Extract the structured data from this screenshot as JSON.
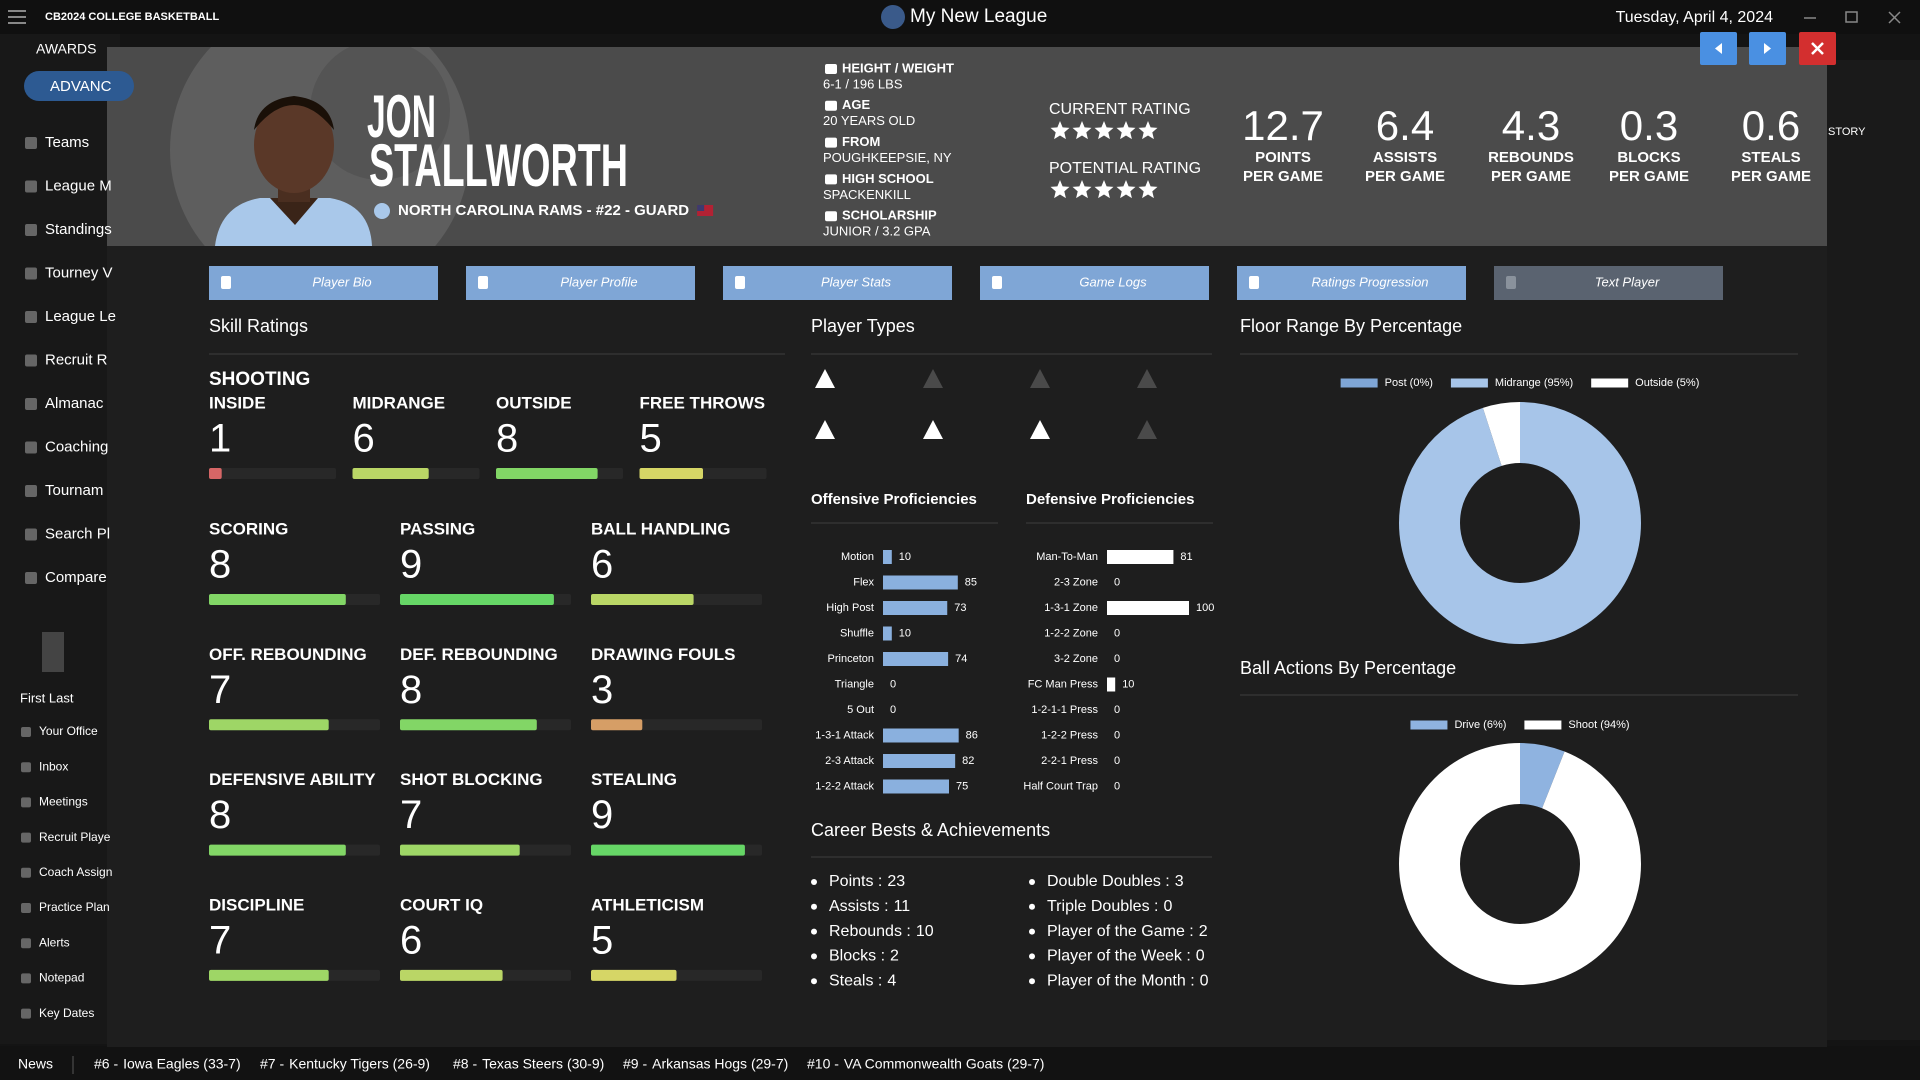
{
  "app": {
    "logo": "CB2024 COLLEGE BASKETBALL",
    "title": "My New League",
    "date": "Tuesday, April 4, 2024"
  },
  "sidebar": {
    "section": "AWARDS",
    "button": "ADVANC",
    "menu": [
      "Teams",
      "League M",
      "Standings",
      "Tourney V",
      "League Le",
      "Recruit R",
      "Almanac",
      "Coaching",
      "Tournam",
      "Search Pl",
      "Compare"
    ],
    "coach": "First Last",
    "links": [
      "Your Office",
      "Inbox",
      "Meetings",
      "Recruit Playe",
      "Coach Assign",
      "Practice Plan",
      "Alerts",
      "Notepad",
      "Key Dates"
    ]
  },
  "right_panel": {
    "tab": "STORY"
  },
  "news": {
    "label": "News",
    "items": [
      {
        "rank": "#6 -",
        "team": "Iowa Eagles (33-7)"
      },
      {
        "rank": "#7 -",
        "team": "Kentucky Tigers (26-9)"
      },
      {
        "rank": "#8 -",
        "team": "Texas Steers (30-9)"
      },
      {
        "rank": "#9 -",
        "team": "Arkansas Hogs (29-7)"
      },
      {
        "rank": "#10 -",
        "team": "VA Commonwealth Goats (29-7)"
      }
    ]
  },
  "player": {
    "first_name": "JON",
    "last_name": "STALLWORTH",
    "team_line": "NORTH CAROLINA RAMS - #22 - GUARD",
    "info": [
      {
        "label": "HEIGHT / WEIGHT",
        "value": "6-1 / 196 LBS"
      },
      {
        "label": "AGE",
        "value": "20 YEARS OLD"
      },
      {
        "label": "FROM",
        "value": "POUGHKEEPSIE, NY"
      },
      {
        "label": "HIGH SCHOOL",
        "value": "SPACKENKILL"
      },
      {
        "label": "SCHOLARSHIP",
        "value": "JUNIOR / 3.2 GPA"
      }
    ],
    "current_rating": {
      "label": "CURRENT RATING",
      "stars": 5
    },
    "potential_rating": {
      "label": "POTENTIAL RATING",
      "stars": 5
    },
    "stats": [
      {
        "value": 12.7,
        "label": "POINTS",
        "sublabel": "PER GAME"
      },
      {
        "value": 6.4,
        "label": "ASSISTS",
        "sublabel": "PER GAME"
      },
      {
        "value": 4.3,
        "label": "REBOUNDS",
        "sublabel": "PER GAME"
      },
      {
        "value": 0.3,
        "label": "BLOCKS",
        "sublabel": "PER GAME"
      },
      {
        "value": 0.6,
        "label": "STEALS",
        "sublabel": "PER GAME"
      }
    ]
  },
  "tabs": [
    "Player Bio",
    "Player Profile",
    "Player Stats",
    "Game Logs",
    "Ratings Progression",
    "Text Player"
  ],
  "skill_ratings": {
    "title": "Skill Ratings",
    "range": [
      0,
      10
    ],
    "shooting": {
      "title": "SHOOTING",
      "items": [
        {
          "name": "INSIDE",
          "value": 1
        },
        {
          "name": "MIDRANGE",
          "value": 6
        },
        {
          "name": "OUTSIDE",
          "value": 8
        },
        {
          "name": "FREE THROWS",
          "value": 5
        }
      ]
    },
    "items": [
      {
        "name": "SCORING",
        "value": 8
      },
      {
        "name": "PASSING",
        "value": 9
      },
      {
        "name": "BALL HANDLING",
        "value": 6
      },
      {
        "name": "OFF. REBOUNDING",
        "value": 7
      },
      {
        "name": "DEF. REBOUNDING",
        "value": 8
      },
      {
        "name": "DRAWING FOULS",
        "value": 3
      },
      {
        "name": "DEFENSIVE ABILITY",
        "value": 8
      },
      {
        "name": "SHOT BLOCKING",
        "value": 7
      },
      {
        "name": "STEALING",
        "value": 9
      },
      {
        "name": "DISCIPLINE",
        "value": 7
      },
      {
        "name": "COURT IQ",
        "value": 6
      },
      {
        "name": "ATHLETICISM",
        "value": 5
      }
    ]
  },
  "player_types": {
    "title": "Player Types"
  },
  "offensive": {
    "title": "Offensive Proficiencies",
    "xlim": [
      0,
      100
    ],
    "color": "#8ab0de",
    "categories": [
      "Motion",
      "Flex",
      "High Post",
      "Shuffle",
      "Princeton",
      "Triangle",
      "5 Out",
      "1-3-1 Attack",
      "2-3 Attack",
      "1-2-2 Attack"
    ],
    "values": [
      10,
      85,
      73,
      10,
      74,
      0,
      0,
      86,
      82,
      75
    ]
  },
  "defensive": {
    "title": "Defensive Proficiencies",
    "xlim": [
      0,
      100
    ],
    "color": "#ffffff",
    "categories": [
      "Man-To-Man",
      "2-3 Zone",
      "1-3-1 Zone",
      "1-2-2 Zone",
      "3-2 Zone",
      "FC Man Press",
      "1-2-1-1 Press",
      "1-2-2 Press",
      "2-2-1 Press",
      "Half Court Trap"
    ],
    "values": [
      81,
      0,
      100,
      0,
      0,
      10,
      0,
      0,
      0,
      0
    ]
  },
  "career": {
    "title": "Career Bests & Achievements",
    "left": [
      {
        "label": "Points :",
        "value": 23
      },
      {
        "label": "Assists :",
        "value": 11
      },
      {
        "label": "Rebounds :",
        "value": 10
      },
      {
        "label": "Blocks :",
        "value": 2
      },
      {
        "label": "Steals :",
        "value": 4
      }
    ],
    "right": [
      {
        "label": "Double Doubles :",
        "value": 3
      },
      {
        "label": "Triple Doubles :",
        "value": 0
      },
      {
        "label": "Player of the Game :",
        "value": 2
      },
      {
        "label": "Player of the Week :",
        "value": 0
      },
      {
        "label": "Player of the Month :",
        "value": 0
      }
    ]
  },
  "floor_range": {
    "title": "Floor Range By Percentage",
    "segments": [
      {
        "label": "Post (0%)",
        "value": 0,
        "color": "#7fa6d6"
      },
      {
        "label": "Midrange (95%)",
        "value": 95,
        "color": "#a7c5e9"
      },
      {
        "label": "Outside (5%)",
        "value": 5,
        "color": "#ffffff"
      }
    ]
  },
  "ball_actions": {
    "title": "Ball Actions By Percentage",
    "segments": [
      {
        "label": "Drive (6%)",
        "value": 6,
        "color": "#8fb3e0"
      },
      {
        "label": "Shoot (94%)",
        "value": 94,
        "color": "#ffffff"
      }
    ]
  }
}
